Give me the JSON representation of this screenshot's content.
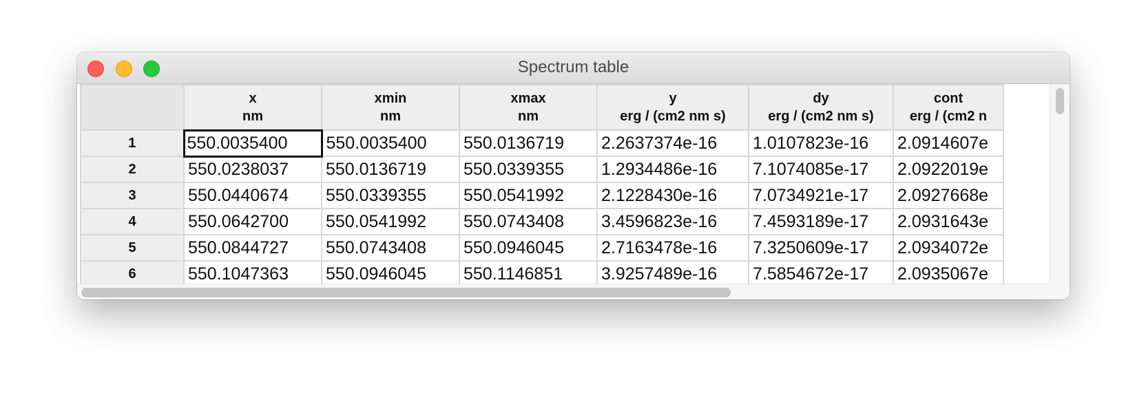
{
  "window": {
    "title": "Spectrum table"
  },
  "table": {
    "columns": [
      {
        "name": "x",
        "unit": "nm"
      },
      {
        "name": "xmin",
        "unit": "nm"
      },
      {
        "name": "xmax",
        "unit": "nm"
      },
      {
        "name": "y",
        "unit": "erg / (cm2 nm s)"
      },
      {
        "name": "dy",
        "unit": "erg / (cm2 nm s)"
      },
      {
        "name": "cont",
        "unit": "erg / (cm2 n"
      }
    ],
    "rows": [
      {
        "index": "1",
        "cells": [
          "550.0035400",
          "550.0035400",
          "550.0136719",
          "2.2637374e-16",
          "1.0107823e-16",
          "2.0914607e"
        ]
      },
      {
        "index": "2",
        "cells": [
          "550.0238037",
          "550.0136719",
          "550.0339355",
          "1.2934486e-16",
          "7.1074085e-17",
          "2.0922019e"
        ]
      },
      {
        "index": "3",
        "cells": [
          "550.0440674",
          "550.0339355",
          "550.0541992",
          "2.1228430e-16",
          "7.0734921e-17",
          "2.0927668e"
        ]
      },
      {
        "index": "4",
        "cells": [
          "550.0642700",
          "550.0541992",
          "550.0743408",
          "3.4596823e-16",
          "7.4593189e-17",
          "2.0931643e"
        ]
      },
      {
        "index": "5",
        "cells": [
          "550.0844727",
          "550.0743408",
          "550.0946045",
          "2.7163478e-16",
          "7.3250609e-17",
          "2.0934072e"
        ]
      },
      {
        "index": "6",
        "cells": [
          "550.1047363",
          "550.0946045",
          "550.1146851",
          "3.9257489e-16",
          "7.5854672e-17",
          "2.0935067e"
        ]
      }
    ]
  },
  "colors": {
    "close": "#fe5f57",
    "minimize": "#febc2e",
    "zoom": "#28c840"
  }
}
